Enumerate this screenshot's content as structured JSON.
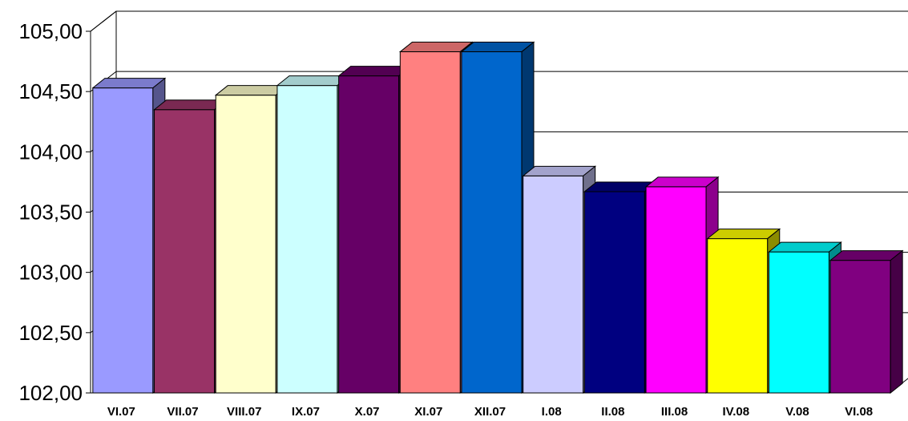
{
  "chart_data": {
    "type": "bar",
    "categories": [
      "VI.07",
      "VII.07",
      "VIII.07",
      "IX.07",
      "X.07",
      "XI.07",
      "XII.07",
      "I.08",
      "II.08",
      "III.08",
      "IV.08",
      "V.08",
      "VI.08"
    ],
    "values": [
      104.53,
      104.35,
      104.47,
      104.55,
      104.63,
      104.83,
      104.83,
      103.8,
      103.67,
      103.71,
      103.28,
      103.17,
      103.1
    ],
    "colors": [
      "#9a9aff",
      "#993366",
      "#ffffcc",
      "#ccffff",
      "#660066",
      "#ff8080",
      "#0066cc",
      "#ccccff",
      "#000080",
      "#ff00ff",
      "#ffff00",
      "#00ffff",
      "#800080"
    ],
    "ylim": [
      102.0,
      105.0
    ],
    "yticks": [
      "102,00",
      "102,50",
      "103,00",
      "103,50",
      "104,00",
      "104,50",
      "105,00"
    ],
    "grid": true,
    "style": "3d-column",
    "title": "",
    "xlabel": "",
    "ylabel": ""
  }
}
